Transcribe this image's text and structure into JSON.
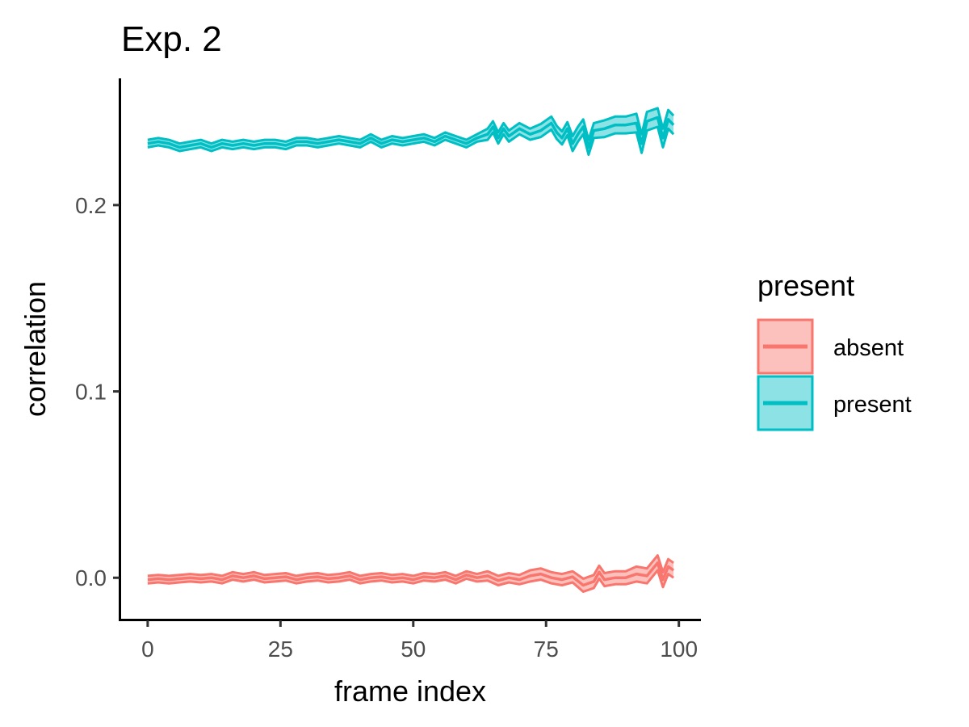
{
  "chart_data": {
    "type": "line",
    "title": "Exp. 2",
    "xlabel": "frame index",
    "ylabel": "correlation",
    "xlim": [
      -5,
      104
    ],
    "ylim": [
      -0.022,
      0.268
    ],
    "x_ticks": [
      0,
      25,
      50,
      75,
      100
    ],
    "x_tick_labels": [
      "0",
      "25",
      "50",
      "75",
      "100"
    ],
    "y_ticks": [
      0.0,
      0.1,
      0.2
    ],
    "y_tick_labels": [
      "0.0",
      "0.1",
      "0.2"
    ],
    "grid": false,
    "legend": {
      "title": "present",
      "position": "right",
      "entries": [
        "absent",
        "present"
      ]
    },
    "series": [
      {
        "name": "absent",
        "color": "#F8766D",
        "x": [
          0,
          2,
          4,
          6,
          8,
          10,
          12,
          14,
          16,
          18,
          20,
          22,
          24,
          26,
          28,
          30,
          32,
          34,
          36,
          38,
          40,
          42,
          44,
          46,
          48,
          50,
          52,
          54,
          56,
          58,
          60,
          62,
          64,
          66,
          68,
          70,
          72,
          74,
          76,
          78,
          80,
          82,
          84,
          85,
          86,
          88,
          90,
          92,
          94,
          96,
          97,
          98,
          99
        ],
        "y": [
          -0.001,
          -0.0005,
          -0.001,
          -0.0005,
          0,
          -0.0005,
          0,
          -0.001,
          0.001,
          0,
          0.001,
          -0.0005,
          0,
          0.0005,
          -0.001,
          0,
          0.0005,
          -0.0005,
          0,
          0.001,
          -0.001,
          0,
          0.0005,
          -0.0005,
          0,
          -0.001,
          0.0005,
          0,
          0.001,
          -0.001,
          0.0015,
          0,
          0.001,
          -0.0015,
          0,
          -0.001,
          0.001,
          0.002,
          0,
          -0.001,
          0.0005,
          -0.004,
          -0.002,
          0.003,
          -0.001,
          0,
          0,
          0.002,
          0.001,
          0.008,
          -0.001,
          0.006,
          0.004
        ],
        "ci": [
          0.002,
          0.002,
          0.002,
          0.002,
          0.002,
          0.002,
          0.002,
          0.002,
          0.002,
          0.002,
          0.002,
          0.002,
          0.002,
          0.002,
          0.002,
          0.002,
          0.002,
          0.002,
          0.002,
          0.002,
          0.002,
          0.002,
          0.002,
          0.002,
          0.002,
          0.002,
          0.002,
          0.002,
          0.002,
          0.002,
          0.002,
          0.002,
          0.0025,
          0.0025,
          0.0025,
          0.0025,
          0.003,
          0.003,
          0.003,
          0.003,
          0.003,
          0.0035,
          0.0035,
          0.0035,
          0.0035,
          0.0035,
          0.0035,
          0.004,
          0.004,
          0.004,
          0.004,
          0.004,
          0.004
        ]
      },
      {
        "name": "present",
        "color": "#00BFC4",
        "x": [
          0,
          2,
          4,
          6,
          8,
          10,
          12,
          14,
          16,
          18,
          20,
          22,
          24,
          26,
          28,
          30,
          32,
          34,
          36,
          38,
          40,
          42,
          44,
          46,
          48,
          50,
          52,
          54,
          56,
          58,
          60,
          62,
          64,
          65,
          66,
          67,
          68,
          70,
          72,
          74,
          76,
          77,
          78,
          79,
          80,
          81,
          82,
          83,
          84,
          86,
          88,
          90,
          92,
          93,
          94,
          96,
          97,
          98,
          99
        ],
        "y": [
          0.233,
          0.234,
          0.233,
          0.231,
          0.232,
          0.233,
          0.231,
          0.233,
          0.232,
          0.233,
          0.232,
          0.233,
          0.233,
          0.232,
          0.234,
          0.234,
          0.233,
          0.234,
          0.235,
          0.234,
          0.233,
          0.236,
          0.233,
          0.235,
          0.234,
          0.235,
          0.236,
          0.234,
          0.237,
          0.235,
          0.233,
          0.236,
          0.238,
          0.242,
          0.236,
          0.241,
          0.237,
          0.241,
          0.238,
          0.24,
          0.244,
          0.239,
          0.236,
          0.241,
          0.233,
          0.238,
          0.242,
          0.231,
          0.24,
          0.241,
          0.243,
          0.243,
          0.244,
          0.233,
          0.245,
          0.247,
          0.236,
          0.246,
          0.243
        ],
        "ci": [
          0.002,
          0.002,
          0.002,
          0.002,
          0.002,
          0.002,
          0.002,
          0.002,
          0.002,
          0.002,
          0.002,
          0.002,
          0.002,
          0.002,
          0.002,
          0.002,
          0.002,
          0.002,
          0.002,
          0.002,
          0.002,
          0.002,
          0.002,
          0.002,
          0.002,
          0.002,
          0.002,
          0.002,
          0.002,
          0.002,
          0.002,
          0.002,
          0.003,
          0.003,
          0.003,
          0.003,
          0.003,
          0.003,
          0.003,
          0.0035,
          0.0035,
          0.0035,
          0.0035,
          0.0035,
          0.004,
          0.004,
          0.004,
          0.004,
          0.004,
          0.0045,
          0.0045,
          0.0045,
          0.005,
          0.005,
          0.005,
          0.005,
          0.005,
          0.005,
          0.005
        ]
      }
    ]
  }
}
